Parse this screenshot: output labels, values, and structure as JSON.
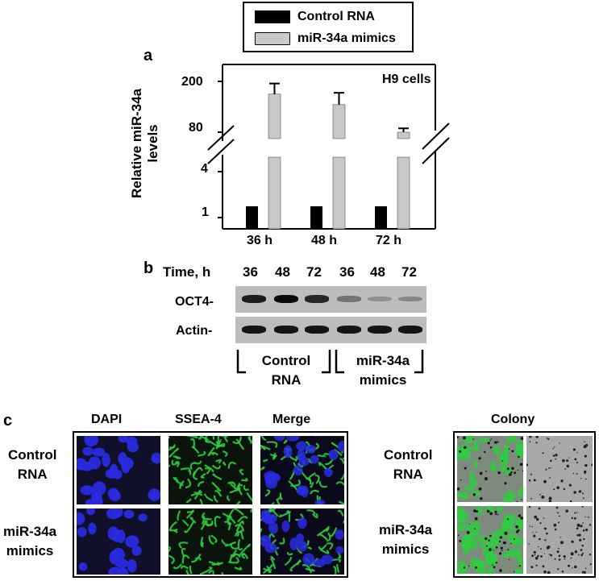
{
  "legend": {
    "items": [
      {
        "label": "Control RNA",
        "color": "#000000"
      },
      {
        "label": "miR-34a mimics",
        "color": "#c8c8c8"
      }
    ]
  },
  "panel_a": {
    "letter": "a",
    "annotation": "H9 cells",
    "ylabel_line1": "Relative miR-34a",
    "ylabel_line2": "levels",
    "yticks": [
      "200",
      "80",
      "4",
      "1"
    ]
  },
  "chart_data": {
    "type": "bar",
    "title": "",
    "ylabel": "Relative miR-34a levels",
    "xlabel": "",
    "categories": [
      "36 h",
      "48 h",
      "72 h"
    ],
    "axis_break": true,
    "ytick_labels": [
      "1",
      "4",
      "80",
      "200"
    ],
    "series": [
      {
        "name": "Control RNA",
        "values": [
          1,
          1,
          1
        ]
      },
      {
        "name": "miR-34a mimics",
        "values": [
          170,
          145,
          80
        ],
        "error": [
          25,
          28,
          9
        ]
      }
    ],
    "legend_position": "top"
  },
  "panel_b": {
    "letter": "b",
    "time_label": "Time, h",
    "timepoints": [
      "36",
      "48",
      "72",
      "36",
      "48",
      "72"
    ],
    "rows": [
      {
        "label": "OCT4-",
        "intensities": [
          0.9,
          1.0,
          0.85,
          0.45,
          0.3,
          0.35
        ]
      },
      {
        "label": "Actin-",
        "intensities": [
          0.95,
          0.95,
          0.95,
          0.95,
          0.95,
          0.95
        ]
      }
    ],
    "group1_line1": "Control",
    "group1_line2": "RNA",
    "group2_line1": "miR-34a",
    "group2_line2": "mimics"
  },
  "panel_c": {
    "letter": "c",
    "columns": [
      "DAPI",
      "SSEA-4",
      "Merge"
    ],
    "row1_line1": "Control",
    "row1_line2": "RNA",
    "row2_line1": "miR-34a",
    "row2_line2": "mimics",
    "colony_title": "Colony",
    "colors": {
      "dapi": "#2a2ae0",
      "ssea4": "#2ecc40",
      "background": "#1a1a1a"
    }
  }
}
